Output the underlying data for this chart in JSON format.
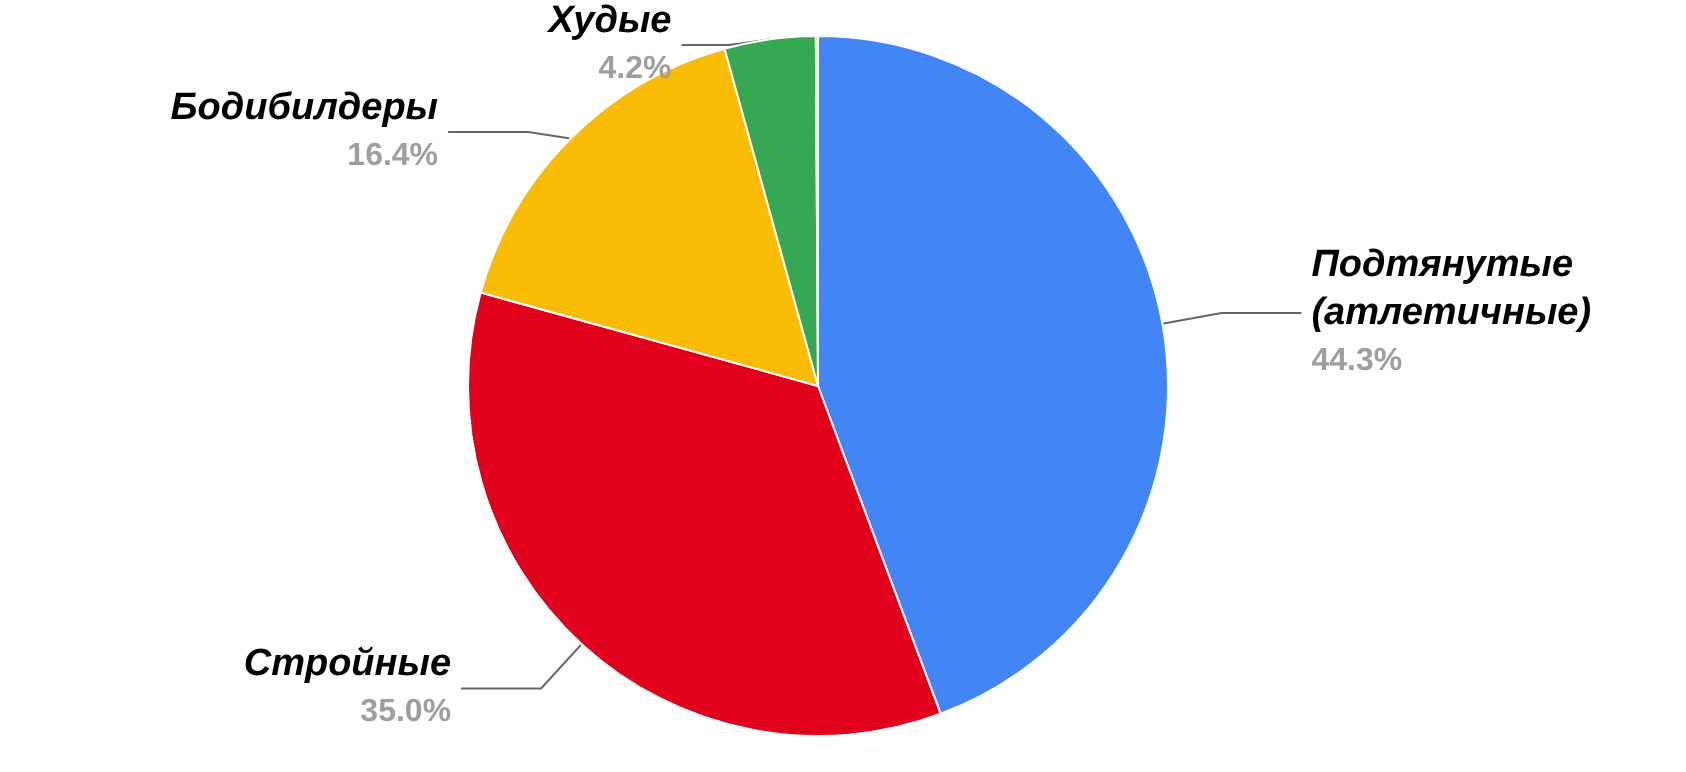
{
  "chart_data": {
    "type": "pie",
    "categories": [
      "Подтянутые\n(атлетичные)",
      "Стройные",
      "Бодибилдеры",
      "Худые",
      null
    ],
    "values": [
      44.3,
      35.0,
      16.4,
      4.2,
      0.1
    ],
    "value_labels": [
      "44.3%",
      "35.0%",
      "16.4%",
      "4.2%",
      null
    ],
    "colors": [
      "#4285f4",
      "#e0001b",
      "#fbbc04",
      "#34a853",
      "#ff6d01"
    ],
    "legend": false
  }
}
